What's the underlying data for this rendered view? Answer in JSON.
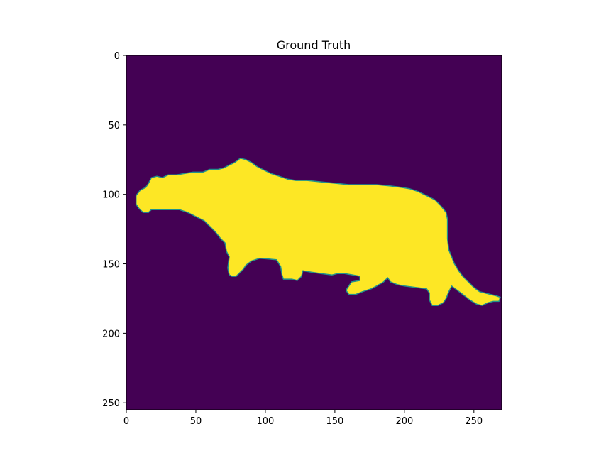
{
  "chart_data": {
    "type": "heatmap",
    "title": "Ground Truth",
    "xlabel": "",
    "ylabel": "",
    "xlim": [
      0,
      270
    ],
    "ylim": [
      255,
      0
    ],
    "x_ticks": [
      0,
      50,
      100,
      150,
      200,
      250
    ],
    "y_ticks": [
      0,
      50,
      100,
      150,
      200,
      250
    ],
    "grid": false,
    "legend": "none",
    "colormap": "viridis",
    "colors": {
      "background": "#440154",
      "mask": "#fde725",
      "edge": "#21918c"
    },
    "classes": [
      {
        "value": 0,
        "color": "#440154"
      },
      {
        "value": 1,
        "color": "#fde725"
      }
    ],
    "mask_outline": [
      [
        7,
        101
      ],
      [
        10,
        97
      ],
      [
        14,
        95
      ],
      [
        16,
        92
      ],
      [
        18,
        88
      ],
      [
        22,
        87
      ],
      [
        26,
        88
      ],
      [
        30,
        86
      ],
      [
        36,
        86
      ],
      [
        42,
        85
      ],
      [
        48,
        84
      ],
      [
        55,
        84
      ],
      [
        60,
        82
      ],
      [
        66,
        82
      ],
      [
        70,
        81
      ],
      [
        74,
        79
      ],
      [
        78,
        77
      ],
      [
        82,
        74
      ],
      [
        86,
        75
      ],
      [
        90,
        77
      ],
      [
        94,
        80
      ],
      [
        98,
        82
      ],
      [
        104,
        85
      ],
      [
        110,
        87
      ],
      [
        116,
        89
      ],
      [
        122,
        90
      ],
      [
        130,
        90
      ],
      [
        140,
        91
      ],
      [
        150,
        92
      ],
      [
        160,
        93
      ],
      [
        170,
        93
      ],
      [
        180,
        93
      ],
      [
        190,
        94
      ],
      [
        198,
        95
      ],
      [
        204,
        96
      ],
      [
        210,
        98
      ],
      [
        216,
        101
      ],
      [
        222,
        104
      ],
      [
        226,
        108
      ],
      [
        230,
        113
      ],
      [
        231,
        118
      ],
      [
        231,
        125
      ],
      [
        231,
        132
      ],
      [
        232,
        140
      ],
      [
        234,
        145
      ],
      [
        236,
        150
      ],
      [
        239,
        155
      ],
      [
        242,
        159
      ],
      [
        246,
        163
      ],
      [
        250,
        167
      ],
      [
        254,
        170
      ],
      [
        258,
        171
      ],
      [
        262,
        172
      ],
      [
        266,
        173
      ],
      [
        269,
        174
      ],
      [
        268,
        177
      ],
      [
        264,
        177
      ],
      [
        260,
        178
      ],
      [
        256,
        180
      ],
      [
        252,
        179
      ],
      [
        247,
        176
      ],
      [
        242,
        172
      ],
      [
        238,
        169
      ],
      [
        234,
        166
      ],
      [
        232,
        170
      ],
      [
        230,
        175
      ],
      [
        228,
        178
      ],
      [
        224,
        180
      ],
      [
        220,
        180
      ],
      [
        218,
        176
      ],
      [
        218,
        171
      ],
      [
        216,
        168
      ],
      [
        208,
        167
      ],
      [
        200,
        166
      ],
      [
        195,
        165
      ],
      [
        190,
        163
      ],
      [
        188,
        160
      ],
      [
        185,
        163
      ],
      [
        180,
        166
      ],
      [
        176,
        168
      ],
      [
        170,
        170
      ],
      [
        165,
        172
      ],
      [
        160,
        172
      ],
      [
        158,
        169
      ],
      [
        160,
        166
      ],
      [
        162,
        163
      ],
      [
        168,
        162
      ],
      [
        168,
        159
      ],
      [
        163,
        158
      ],
      [
        157,
        157
      ],
      [
        152,
        157
      ],
      [
        148,
        158
      ],
      [
        140,
        157
      ],
      [
        133,
        156
      ],
      [
        127,
        155
      ],
      [
        126,
        159
      ],
      [
        123,
        162
      ],
      [
        119,
        161
      ],
      [
        116,
        161
      ],
      [
        113,
        161
      ],
      [
        112,
        158
      ],
      [
        111,
        152
      ],
      [
        108,
        147
      ],
      [
        96,
        146
      ],
      [
        90,
        148
      ],
      [
        86,
        151
      ],
      [
        84,
        154
      ],
      [
        81,
        157
      ],
      [
        79,
        159
      ],
      [
        76,
        159
      ],
      [
        74,
        158
      ],
      [
        73,
        153
      ],
      [
        74,
        145
      ],
      [
        72,
        141
      ],
      [
        71,
        135
      ],
      [
        68,
        132
      ],
      [
        64,
        127
      ],
      [
        60,
        123
      ],
      [
        56,
        119
      ],
      [
        50,
        116
      ],
      [
        44,
        113
      ],
      [
        38,
        111
      ],
      [
        30,
        111
      ],
      [
        24,
        111
      ],
      [
        18,
        111
      ],
      [
        16,
        113
      ],
      [
        12,
        113
      ],
      [
        9,
        110
      ],
      [
        7,
        107
      ],
      [
        7,
        103
      ]
    ]
  }
}
